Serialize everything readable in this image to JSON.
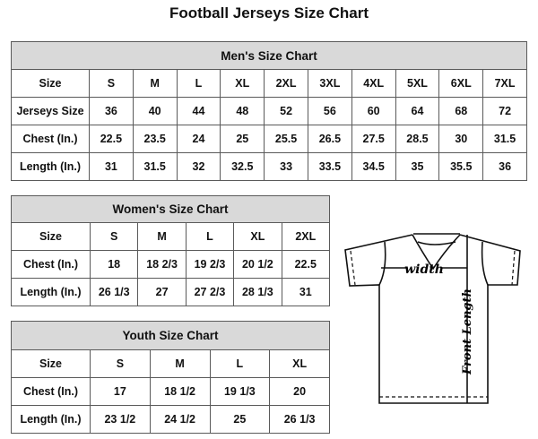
{
  "title": "Football Jerseys Size Chart",
  "men": {
    "title": "Men's Size Chart",
    "rows": [
      [
        "Size",
        "S",
        "M",
        "L",
        "XL",
        "2XL",
        "3XL",
        "4XL",
        "5XL",
        "6XL",
        "7XL"
      ],
      [
        "Jerseys Size",
        "36",
        "40",
        "44",
        "48",
        "52",
        "56",
        "60",
        "64",
        "68",
        "72"
      ],
      [
        "Chest (In.)",
        "22.5",
        "23.5",
        "24",
        "25",
        "25.5",
        "26.5",
        "27.5",
        "28.5",
        "30",
        "31.5"
      ],
      [
        "Length (In.)",
        "31",
        "31.5",
        "32",
        "32.5",
        "33",
        "33.5",
        "34.5",
        "35",
        "35.5",
        "36"
      ]
    ]
  },
  "women": {
    "title": "Women's Size Chart",
    "rows": [
      [
        "Size",
        "S",
        "M",
        "L",
        "XL",
        "2XL"
      ],
      [
        "Chest (In.)",
        "18",
        "18 2/3",
        "19 2/3",
        "20 1/2",
        "22.5"
      ],
      [
        "Length (In.)",
        "26 1/3",
        "27",
        "27 2/3",
        "28 1/3",
        "31"
      ]
    ]
  },
  "youth": {
    "title": "Youth Size Chart",
    "rows": [
      [
        "Size",
        "S",
        "M",
        "L",
        "XL"
      ],
      [
        "Chest (In.)",
        "17",
        "18 1/2",
        "19 1/3",
        "20"
      ],
      [
        "Length (In.)",
        "23 1/2",
        "24 1/2",
        "25",
        "26 1/3"
      ]
    ]
  },
  "diagram": {
    "width_label": "width",
    "length_label": "Front Length"
  }
}
